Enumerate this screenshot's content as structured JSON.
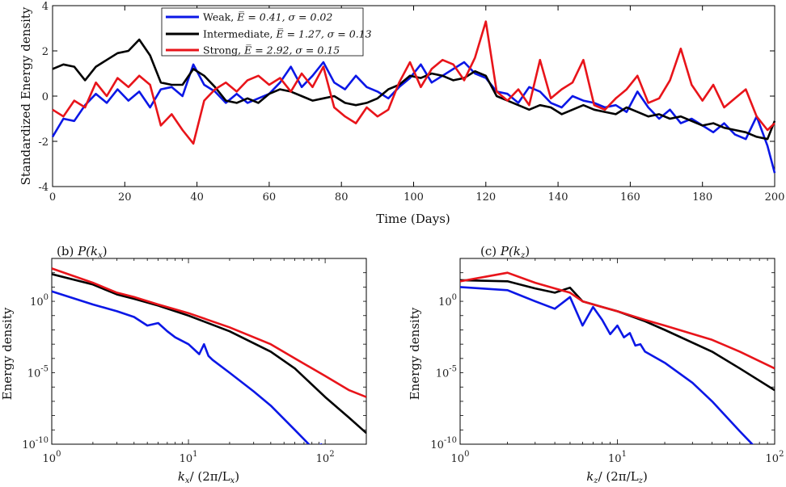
{
  "chart_data": [
    {
      "type": "line",
      "title": "",
      "xlabel": "Time (Days)",
      "ylabel": "Standardized Energy density",
      "xlim": [
        0,
        200
      ],
      "ylim": [
        -4,
        4
      ],
      "xticks": [
        0,
        20,
        40,
        60,
        80,
        100,
        120,
        140,
        160,
        180,
        200
      ],
      "yticks": [
        -4,
        -2,
        0,
        2,
        4
      ],
      "legend_position": "top-center",
      "legend": [
        {
          "name": "Weak",
          "stats": "E̅ = 0.41, σ = 0.02",
          "color": "#0b17e6"
        },
        {
          "name": "Intermediate",
          "stats": "E̅ = 1.27, σ = 0.13",
          "color": "#000000"
        },
        {
          "name": "Strong",
          "stats": "E̅ = 2.92, σ = 0.15",
          "color": "#e8141a"
        }
      ],
      "series": [
        {
          "name": "Weak",
          "color": "#0b17e6",
          "x": [
            0,
            3,
            6,
            9,
            12,
            15,
            18,
            21,
            24,
            27,
            30,
            33,
            36,
            39,
            42,
            45,
            48,
            51,
            54,
            57,
            60,
            63,
            66,
            69,
            72,
            75,
            78,
            81,
            84,
            87,
            90,
            93,
            96,
            99,
            102,
            105,
            108,
            111,
            114,
            117,
            120,
            123,
            126,
            129,
            132,
            135,
            138,
            141,
            144,
            147,
            150,
            153,
            156,
            159,
            162,
            165,
            168,
            171,
            174,
            177,
            180,
            183,
            186,
            189,
            192,
            195,
            198,
            200
          ],
          "y": [
            -1.8,
            -1.0,
            -1.1,
            -0.4,
            0.1,
            -0.3,
            0.3,
            -0.2,
            0.2,
            -0.5,
            0.3,
            0.4,
            0.0,
            1.4,
            0.5,
            0.2,
            -0.3,
            0.1,
            -0.3,
            -0.1,
            0.1,
            0.6,
            1.3,
            0.4,
            0.9,
            1.5,
            0.6,
            0.3,
            0.9,
            0.4,
            0.2,
            -0.1,
            0.4,
            0.8,
            1.4,
            0.6,
            0.9,
            1.2,
            1.5,
            1.0,
            0.8,
            0.2,
            0.1,
            -0.3,
            0.4,
            0.2,
            -0.3,
            -0.5,
            0.0,
            -0.2,
            -0.3,
            -0.5,
            -0.4,
            -0.7,
            0.2,
            -0.5,
            -1.0,
            -0.6,
            -1.2,
            -1.0,
            -1.3,
            -1.6,
            -1.2,
            -1.7,
            -1.9,
            -0.9,
            -2.2,
            -3.4
          ]
        },
        {
          "name": "Intermediate",
          "color": "#000000",
          "x": [
            0,
            3,
            6,
            9,
            12,
            15,
            18,
            21,
            24,
            27,
            30,
            33,
            36,
            39,
            42,
            45,
            48,
            51,
            54,
            57,
            60,
            63,
            66,
            69,
            72,
            75,
            78,
            81,
            84,
            87,
            90,
            93,
            96,
            99,
            102,
            105,
            108,
            111,
            114,
            117,
            120,
            123,
            126,
            129,
            132,
            135,
            138,
            141,
            144,
            147,
            150,
            153,
            156,
            159,
            162,
            165,
            168,
            171,
            174,
            177,
            180,
            183,
            186,
            189,
            192,
            195,
            198,
            200
          ],
          "y": [
            1.2,
            1.4,
            1.3,
            0.7,
            1.3,
            1.6,
            1.9,
            2.0,
            2.5,
            1.8,
            0.6,
            0.5,
            0.5,
            1.2,
            0.9,
            0.4,
            -0.2,
            -0.3,
            -0.1,
            -0.3,
            0.1,
            0.3,
            0.2,
            0.0,
            -0.2,
            -0.1,
            0.0,
            -0.3,
            -0.4,
            -0.3,
            -0.1,
            0.3,
            0.5,
            0.9,
            0.8,
            1.0,
            0.9,
            0.7,
            0.8,
            1.1,
            0.9,
            0.0,
            -0.2,
            -0.4,
            -0.6,
            -0.4,
            -0.5,
            -0.8,
            -0.6,
            -0.4,
            -0.6,
            -0.7,
            -0.8,
            -0.5,
            -0.7,
            -0.9,
            -0.8,
            -1.0,
            -0.9,
            -1.1,
            -1.3,
            -1.2,
            -1.4,
            -1.5,
            -1.6,
            -1.8,
            -1.9,
            -1.1
          ]
        },
        {
          "name": "Strong",
          "color": "#e8141a",
          "x": [
            0,
            3,
            6,
            9,
            12,
            15,
            18,
            21,
            24,
            27,
            30,
            33,
            36,
            39,
            42,
            45,
            48,
            51,
            54,
            57,
            60,
            63,
            66,
            69,
            72,
            75,
            78,
            81,
            84,
            87,
            90,
            93,
            96,
            99,
            102,
            105,
            108,
            111,
            114,
            117,
            120,
            123,
            126,
            129,
            132,
            135,
            138,
            141,
            144,
            147,
            150,
            153,
            156,
            159,
            162,
            165,
            168,
            171,
            174,
            177,
            180,
            183,
            186,
            189,
            192,
            195,
            198,
            200
          ],
          "y": [
            -0.6,
            -0.9,
            -0.2,
            -0.5,
            0.6,
            0.0,
            0.8,
            0.4,
            0.9,
            0.5,
            -1.3,
            -0.8,
            -1.5,
            -2.1,
            -0.2,
            0.3,
            0.6,
            0.2,
            0.7,
            0.9,
            0.5,
            0.8,
            0.2,
            1.0,
            0.4,
            1.3,
            -0.5,
            -0.9,
            -1.2,
            -0.5,
            -0.9,
            -0.6,
            0.6,
            1.5,
            0.4,
            1.2,
            1.6,
            1.4,
            0.7,
            1.7,
            3.3,
            0.2,
            -0.2,
            0.3,
            -0.4,
            1.6,
            -0.1,
            0.3,
            0.6,
            1.6,
            -0.4,
            -0.6,
            -0.1,
            0.3,
            0.9,
            -0.3,
            -0.1,
            0.7,
            2.1,
            0.5,
            -0.2,
            0.5,
            -0.5,
            -0.1,
            0.3,
            -0.9,
            -1.5,
            -1.2
          ]
        }
      ]
    },
    {
      "type": "line",
      "title": "(b) P(kₓ)",
      "title_prefix": "(b)",
      "title_fn": "P(k",
      "title_sub": "x",
      "xlabel_main": "k",
      "xlabel_sub": "x",
      "xlabel_mid": "/ (2π/L",
      "xlabel_sub2": "x",
      "xlabel_end": ")",
      "ylabel": "Energy density",
      "xscale": "log",
      "yscale": "log",
      "xlim": [
        1,
        200
      ],
      "ylim": [
        1e-10,
        1000.0
      ],
      "xtick_labels": [
        {
          "value": 1,
          "base": "10",
          "exp": "0"
        },
        {
          "value": 10,
          "base": "10",
          "exp": "1"
        },
        {
          "value": 100,
          "base": "10",
          "exp": "2"
        }
      ],
      "ytick_labels": [
        {
          "value": 1e-10,
          "base": "10",
          "exp": "-10"
        },
        {
          "value": 1e-05,
          "base": "10",
          "exp": "-5"
        },
        {
          "value": 1,
          "base": "10",
          "exp": "0"
        }
      ],
      "series": [
        {
          "name": "Weak",
          "color": "#0b17e6",
          "x": [
            1,
            2,
            3,
            4,
            5,
            6,
            7,
            8,
            10,
            12,
            13,
            14,
            15,
            20,
            30,
            40,
            60,
            80,
            95
          ],
          "y": [
            5,
            0.6,
            0.2,
            0.08,
            0.02,
            0.03,
            0.008,
            0.003,
            0.001,
            0.0002,
            0.001,
            0.00015,
            8e-05,
            1e-05,
            5e-07,
            5e-08,
            1e-09,
            6e-11,
            1e-10
          ]
        },
        {
          "name": "Intermediate",
          "color": "#000000",
          "x": [
            1,
            2,
            3,
            4,
            6,
            10,
            20,
            40,
            60,
            100,
            150,
            200
          ],
          "y": [
            80,
            15,
            3,
            1.5,
            0.5,
            0.1,
            0.008,
            0.0003,
            2e-05,
            2e-07,
            7e-09,
            6e-10
          ]
        },
        {
          "name": "Strong",
          "color": "#e8141a",
          "x": [
            1,
            2,
            3,
            4,
            6,
            10,
            20,
            40,
            60,
            100,
            150,
            200
          ],
          "y": [
            200,
            20,
            4,
            2,
            0.6,
            0.15,
            0.015,
            0.001,
            0.0001,
            6e-06,
            6e-07,
            2e-07
          ]
        }
      ]
    },
    {
      "type": "line",
      "title": "(c) P(k_z)",
      "title_prefix": "(c)",
      "title_fn": "P(k",
      "title_sub": "z",
      "xlabel_main": "k",
      "xlabel_sub": "z",
      "xlabel_mid": "/ (2π/L",
      "xlabel_sub2": "z",
      "xlabel_end": ")",
      "ylabel": "Energy density",
      "xscale": "log",
      "yscale": "log",
      "xlim": [
        1,
        100
      ],
      "ylim": [
        1e-10,
        1000.0
      ],
      "xtick_labels": [
        {
          "value": 1,
          "base": "10",
          "exp": "0"
        },
        {
          "value": 10,
          "base": "10",
          "exp": "1"
        },
        {
          "value": 100,
          "base": "10",
          "exp": "2"
        }
      ],
      "ytick_labels": [
        {
          "value": 1e-10,
          "base": "10",
          "exp": "-10"
        },
        {
          "value": 1e-05,
          "base": "10",
          "exp": "-5"
        },
        {
          "value": 1,
          "base": "10",
          "exp": "0"
        }
      ],
      "series": [
        {
          "name": "Weak",
          "color": "#0b17e6",
          "x": [
            1,
            2,
            3,
            4,
            5,
            6,
            7,
            8,
            9,
            10,
            11,
            12,
            13,
            14,
            15,
            20,
            30,
            40,
            60,
            80,
            95
          ],
          "y": [
            10,
            6,
            1,
            0.3,
            2,
            0.02,
            0.4,
            0.05,
            0.005,
            0.02,
            0.003,
            0.006,
            0.0008,
            0.001,
            0.0003,
            5e-05,
            2e-06,
            1e-07,
            8e-10,
            3e-11,
            7e-11
          ]
        },
        {
          "name": "Intermediate",
          "color": "#000000",
          "x": [
            1,
            2,
            3,
            4,
            5,
            6,
            8,
            10,
            15,
            20,
            40,
            60,
            100
          ],
          "y": [
            30,
            25,
            8,
            4,
            9,
            1,
            0.4,
            0.2,
            0.04,
            0.01,
            0.0003,
            2e-05,
            6e-07
          ]
        },
        {
          "name": "Strong",
          "color": "#e8141a",
          "x": [
            1,
            2,
            3,
            4,
            5,
            6,
            8,
            10,
            15,
            20,
            40,
            60,
            100
          ],
          "y": [
            25,
            100,
            20,
            8,
            4,
            1,
            0.4,
            0.2,
            0.05,
            0.02,
            0.002,
            0.0003,
            2e-05
          ]
        }
      ]
    }
  ]
}
